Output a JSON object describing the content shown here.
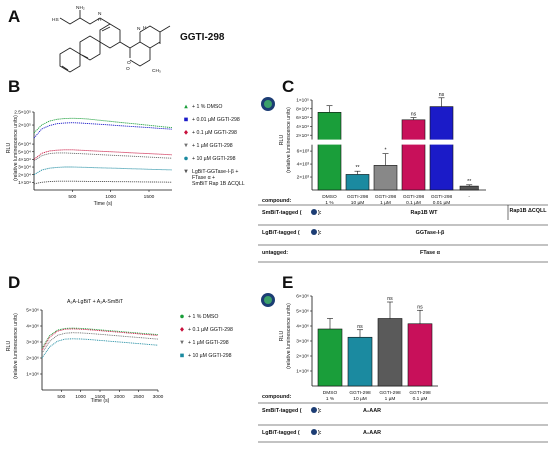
{
  "panels": {
    "A": {
      "label": "A",
      "compound_name": "GGTI-298",
      "structure_labels": [
        "HS",
        "NH₂",
        "N",
        "H",
        "O",
        "N",
        "H",
        "O",
        "CH₃"
      ]
    },
    "B": {
      "label": "B",
      "ylabel": "RLU",
      "ylabel2": "(relative luminescence units)",
      "xlabel": "Time (s)",
      "x_ticks": [
        "500",
        "1000",
        "1500"
      ],
      "y_ticks": [
        "1×10⁴",
        "2×10⁴",
        "3×10⁴",
        "4×10⁴",
        "5×10⁴",
        "6×10⁴",
        "2.5×10⁵",
        "2×10⁵"
      ],
      "legend": [
        {
          "label": "+ 1 % DMSO",
          "color": "#1a9e3a",
          "marker": "triangle"
        },
        {
          "label": "+ 0.01 µM GGTI-298",
          "color": "#1b1bc8",
          "marker": "square"
        },
        {
          "label": "+ 0.1 µM GGTI-298",
          "color": "#c8103c",
          "marker": "diamond"
        },
        {
          "label": "+ 1 µM GGTI-298",
          "color": "#707070",
          "marker": "triangle-down"
        },
        {
          "label": "+ 10 µM GGTI-298",
          "color": "#1b8aa0",
          "marker": "circle"
        },
        {
          "label": "LgBiT-GGTase-I-β + FTase α + SmBiT Rap 1B ΔCQLL",
          "color": "#555555",
          "marker": "triangle-down"
        }
      ]
    },
    "C": {
      "label": "C",
      "ylabel": "RLU",
      "ylabel2": "(relative luminescence units)",
      "y_ticks_top": [
        "2×10⁴",
        "4×10⁴",
        "6×10⁴",
        "8×10⁴",
        "1×10⁵"
      ],
      "y_ticks_bottom": [
        "2×10³",
        "4×10³",
        "6×10³"
      ],
      "categories": [
        "DMSO 1 %",
        "GGTI-298 10 µM",
        "GGTI-298 1 µM",
        "GGTI-298 0.1 µM",
        "GGTI-298 0.01 µM",
        "-"
      ],
      "cat_lines": [
        [
          "DMSO",
          "1 %"
        ],
        [
          "GGTI-298",
          "10 µM"
        ],
        [
          "GGTI-298",
          "1 µM"
        ],
        [
          "GGTI-298",
          "0.1 µM"
        ],
        [
          "GGTI-298",
          "0.01 µM"
        ],
        [
          "-"
        ]
      ],
      "significance": [
        "",
        "**",
        "*",
        "ns",
        "ns",
        "**"
      ],
      "compound_label": "compound:",
      "rows": [
        {
          "label": "SmBiT-tagged (",
          "label_end": "):",
          "values": [
            "Rap1B WT",
            "Rap1B ΔCQLL"
          ]
        },
        {
          "label": "LgBiT-tagged (",
          "label_end": "):",
          "values": [
            "GGTase-I-β"
          ]
        },
        {
          "label": "untagged:",
          "label_end": "",
          "values": [
            "FTase α"
          ]
        }
      ]
    },
    "D": {
      "label": "D",
      "title": "A₂A-LgBiT + A₂A-SmBiT",
      "ylabel": "RLU",
      "ylabel2": "(relative luminescence units)",
      "xlabel": "Time (s)",
      "x_ticks": [
        "500",
        "1000",
        "1500",
        "2000",
        "2500",
        "3000"
      ],
      "y_ticks": [
        "1×10⁶",
        "2×10⁶",
        "3×10⁶",
        "4×10⁶",
        "5×10⁶"
      ],
      "legend": [
        {
          "label": "+ 1 % DMSO",
          "color": "#1a9e3a",
          "marker": "circle"
        },
        {
          "label": "+ 0.1 µM GGTI-298",
          "color": "#c8103c",
          "marker": "diamond"
        },
        {
          "label": "+ 1 µM GGTI-298",
          "color": "#707070",
          "marker": "triangle-down"
        },
        {
          "label": "+ 10 µM GGTI-298",
          "color": "#1b8aa0",
          "marker": "square"
        }
      ]
    },
    "E": {
      "label": "E",
      "ylabel": "RLU",
      "ylabel2": "(relative luminescence units)",
      "y_ticks": [
        "1×10⁶",
        "2×10⁶",
        "3×10⁶",
        "4×10⁶",
        "5×10⁶",
        "6×10⁶"
      ],
      "categories": [
        "DMSO 1 %",
        "GGTI-298 10 µM",
        "GGTI-298 1 µM",
        "GGTI-298 0.1 µM"
      ],
      "cat_lines": [
        [
          "DMSO",
          "1 %"
        ],
        [
          "GGTI-298",
          "10 µM"
        ],
        [
          "GGTI-298",
          "1 µM"
        ],
        [
          "GGTI-298",
          "0.1 µM"
        ]
      ],
      "significance": [
        "",
        "ns",
        "ns",
        "ns"
      ],
      "compound_label": "compound:",
      "rows": [
        {
          "label": "SmBiT-tagged (",
          "label_end": "):",
          "values": [
            "A₂AAR"
          ]
        },
        {
          "label": "LgBiT-tagged (",
          "label_end": "):",
          "values": [
            "A₂AAR"
          ]
        }
      ]
    }
  },
  "chart_data": [
    {
      "type": "line",
      "panel": "B",
      "xlabel": "Time (s)",
      "ylabel": "RLU (relative luminescence units)",
      "xlim": [
        0,
        1800
      ],
      "x": [
        0,
        100,
        200,
        300,
        400,
        500,
        600,
        700,
        800,
        900,
        1000,
        1100,
        1200,
        1300,
        1400,
        1500,
        1600,
        1700,
        1800
      ],
      "series": [
        {
          "name": "+ 1 % DMSO",
          "color": "#1a9e3a",
          "values": [
            170000,
            200000,
            215000,
            222000,
            225000,
            226000,
            225000,
            223000,
            220000,
            217000,
            214000,
            211000,
            208000,
            205000,
            202000,
            199000,
            196000,
            193000,
            190000
          ]
        },
        {
          "name": "+ 0.01 µM GGTI-298",
          "color": "#1b1bc8",
          "values": [
            150000,
            185000,
            198000,
            205000,
            208000,
            209000,
            208000,
            206000,
            204000,
            202000,
            200000,
            198000,
            196000,
            194000,
            192000,
            190000,
            188000,
            186000,
            184000
          ]
        },
        {
          "name": "+ 0.1 µM GGTI-298",
          "color": "#c8103c",
          "values": [
            40000,
            48000,
            51000,
            52000,
            52500,
            52500,
            52000,
            51500,
            51000,
            50500,
            50000,
            49500,
            49000,
            48500,
            48000,
            47500,
            47000,
            46500,
            46000
          ]
        },
        {
          "name": "+ 1 µM GGTI-298",
          "color": "#707070",
          "values": [
            38000,
            45000,
            47500,
            48500,
            48500,
            48000,
            47500,
            47000,
            46500,
            46000,
            45500,
            45000,
            44500,
            44000,
            43500,
            43000,
            42500,
            42000,
            41500
          ]
        },
        {
          "name": "+ 10 µM GGTI-298",
          "color": "#1b8aa0",
          "values": [
            20000,
            26000,
            28500,
            29500,
            30000,
            30000,
            29800,
            29500,
            29200,
            28900,
            28600,
            28300,
            28000,
            27700,
            27400,
            27100,
            26800,
            26500,
            26200
          ]
        },
        {
          "name": "LgBiT-GGTase-I-β + FTase α + SmBiT Rap 1B ΔCQLL",
          "color": "#555555",
          "values": [
            8000,
            10000,
            11000,
            11500,
            11500,
            11500,
            11400,
            11300,
            11200,
            11100,
            11000,
            10900,
            10800,
            10700,
            10600,
            10500,
            10400,
            10300,
            10200
          ]
        }
      ]
    },
    {
      "type": "bar",
      "panel": "C",
      "ylabel": "RLU (relative luminescence units)",
      "categories": [
        "DMSO 1 %",
        "GGTI-298 10 µM",
        "GGTI-298 1 µM",
        "GGTI-298 0.1 µM",
        "GGTI-298 0.01 µM",
        "-"
      ],
      "values": [
        72000,
        2400,
        3800,
        55000,
        85000,
        600
      ],
      "errors": [
        15000,
        500,
        1800,
        5000,
        20000,
        200
      ],
      "colors": [
        "#1a9e3a",
        "#1b8aa0",
        "#888888",
        "#c8105a",
        "#1b1bc8",
        "#555555"
      ],
      "significance": [
        "",
        "**",
        "*",
        "ns",
        "ns",
        "**"
      ]
    },
    {
      "type": "line",
      "panel": "D",
      "xlabel": "Time (s)",
      "ylabel": "RLU (relative luminescence units)",
      "title": "A₂A-LgBiT + A₂A-SmBiT",
      "xlim": [
        0,
        3000
      ],
      "ylim": [
        0,
        5000000
      ],
      "x": [
        0,
        200,
        400,
        600,
        800,
        1000,
        1200,
        1400,
        1600,
        1800,
        2000,
        2200,
        2400,
        2600,
        2800,
        3000
      ],
      "series": [
        {
          "name": "+ 1 % DMSO",
          "color": "#1a9e3a",
          "values": [
            2600000,
            3400000,
            3750000,
            3850000,
            3870000,
            3850000,
            3820000,
            3780000,
            3740000,
            3700000,
            3660000,
            3620000,
            3580000,
            3540000,
            3500000,
            3460000
          ]
        },
        {
          "name": "+ 0.1 µM GGTI-298",
          "color": "#c8103c",
          "values": [
            2500000,
            3300000,
            3680000,
            3800000,
            3820000,
            3800000,
            3770000,
            3730000,
            3690000,
            3650000,
            3610000,
            3570000,
            3530000,
            3490000,
            3450000,
            3410000
          ]
        },
        {
          "name": "+ 1 µM GGTI-298",
          "color": "#707070",
          "values": [
            2300000,
            3050000,
            3420000,
            3550000,
            3580000,
            3570000,
            3540000,
            3500000,
            3460000,
            3420000,
            3380000,
            3340000,
            3300000,
            3260000,
            3220000,
            3180000
          ]
        },
        {
          "name": "+ 10 µM GGTI-298",
          "color": "#1b8aa0",
          "values": [
            2000000,
            2700000,
            3050000,
            3180000,
            3200000,
            3190000,
            3160000,
            3120000,
            3080000,
            3040000,
            3000000,
            2960000,
            2920000,
            2880000,
            2840000,
            2800000
          ]
        }
      ]
    },
    {
      "type": "bar",
      "panel": "E",
      "ylabel": "RLU (relative luminescence units)",
      "categories": [
        "DMSO 1 %",
        "GGTI-298 10 µM",
        "GGTI-298 1 µM",
        "GGTI-298 0.1 µM"
      ],
      "values": [
        3800000,
        3250000,
        4500000,
        4150000
      ],
      "errors": [
        700000,
        500000,
        1100000,
        900000
      ],
      "colors": [
        "#1a9e3a",
        "#1b8aa0",
        "#5a5a5a",
        "#c8105a"
      ],
      "ylim": [
        0,
        6000000
      ],
      "significance": [
        "",
        "ns",
        "ns",
        "ns"
      ]
    }
  ]
}
